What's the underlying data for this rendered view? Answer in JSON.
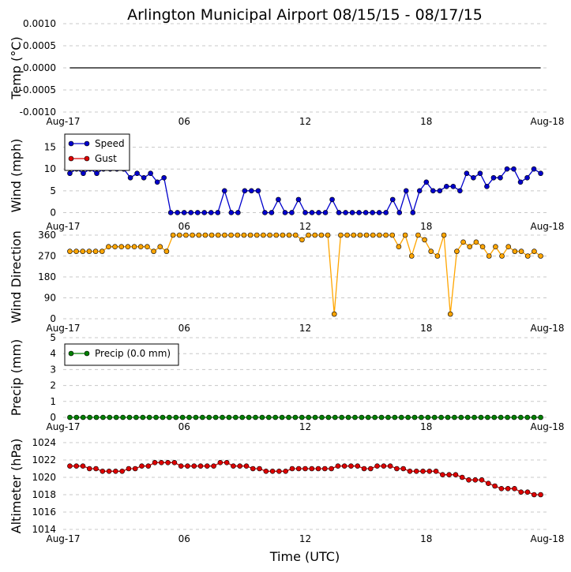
{
  "chart_data": {
    "title": "Arlington Municipal Airport 08/15/15 - 08/17/15",
    "xlabel": "Time (UTC)",
    "x_ticks": [
      "Aug-17",
      "06",
      "12",
      "18",
      "Aug-18"
    ],
    "x_tick_hours": [
      0,
      6,
      12,
      18,
      24
    ],
    "x_range_hours": [
      0,
      24
    ],
    "grid": "horizontal dashed",
    "panels": [
      {
        "id": "temp",
        "type": "line",
        "ylabel": "Temp (°C)",
        "ylim": [
          -0.001,
          0.001
        ],
        "yticks": [
          "0.0010",
          "0.0005",
          "0.0000",
          "-0.0005",
          "-0.0010"
        ],
        "ytick_values": [
          0.001,
          0.0005,
          0,
          -0.0005,
          -0.001
        ],
        "series": [
          {
            "color": "#000000",
            "markers": false,
            "x": [
              0.33,
              23.67
            ],
            "values": [
              0,
              0
            ]
          }
        ]
      },
      {
        "id": "wind",
        "type": "line",
        "ylabel": "Wind (mph)",
        "ylim": [
          -1,
          18
        ],
        "yticks": [
          "15",
          "10",
          "5",
          "0"
        ],
        "ytick_values": [
          15,
          10,
          5,
          0
        ],
        "legend_position": "top-left",
        "series": [
          {
            "name": "Speed",
            "color": "#0000cc",
            "markers": true,
            "values": [
              9,
              10,
              9,
              10,
              9,
              10,
              10,
              10,
              10,
              8,
              9,
              8,
              9,
              7,
              8,
              0,
              0,
              0,
              0,
              0,
              0,
              0,
              0,
              5,
              0,
              0,
              5,
              5,
              5,
              0,
              0,
              3,
              0,
              0,
              3,
              0,
              0,
              0,
              0,
              3,
              0,
              0,
              0,
              0,
              0,
              0,
              0,
              0,
              3,
              0,
              5,
              0,
              5,
              7,
              5,
              5,
              6,
              6,
              5,
              9,
              8,
              9,
              6,
              8,
              8,
              10,
              10,
              7,
              8,
              10,
              9
            ]
          },
          {
            "name": "Gust",
            "color": "#dd0000",
            "markers": true,
            "values": []
          }
        ]
      },
      {
        "id": "direction",
        "type": "line",
        "ylabel": "Wind Direction",
        "ylim": [
          0,
          360
        ],
        "yticks": [
          "360",
          "270",
          "180",
          "90",
          "0"
        ],
        "ytick_values": [
          360,
          270,
          180,
          90,
          0
        ],
        "series": [
          {
            "color": "#ffa500",
            "markers": true,
            "values": [
              290,
              290,
              290,
              290,
              290,
              290,
              310,
              310,
              310,
              310,
              310,
              310,
              310,
              290,
              310,
              290,
              360,
              360,
              360,
              360,
              360,
              360,
              360,
              360,
              360,
              360,
              360,
              360,
              360,
              360,
              360,
              360,
              360,
              360,
              360,
              360,
              340,
              360,
              360,
              360,
              360,
              20,
              360,
              360,
              360,
              360,
              360,
              360,
              360,
              360,
              360,
              310,
              360,
              270,
              360,
              340,
              290,
              270,
              360,
              20,
              290,
              330,
              310,
              330,
              310,
              270,
              310,
              270,
              310,
              290,
              290,
              270,
              290,
              270
            ]
          }
        ]
      },
      {
        "id": "precip",
        "type": "line",
        "ylabel": "Precip (mm)",
        "ylim": [
          0,
          5
        ],
        "yticks": [
          "5",
          "4",
          "3",
          "2",
          "1",
          "0"
        ],
        "ytick_values": [
          5,
          4,
          3,
          2,
          1,
          0
        ],
        "legend_position": "top-left",
        "series": [
          {
            "name": "Precip (0.0 mm)",
            "color": "#008000",
            "markers": true,
            "constant_value": 0,
            "count": 72
          }
        ]
      },
      {
        "id": "altimeter",
        "type": "line",
        "ylabel": "Altimeter (hPa)",
        "ylim": [
          1014,
          1024
        ],
        "yticks": [
          "1024",
          "1022",
          "1020",
          "1018",
          "1016",
          "1014"
        ],
        "ytick_values": [
          1024,
          1022,
          1020,
          1018,
          1016,
          1014
        ],
        "series": [
          {
            "color": "#dd0000",
            "markers": true,
            "values": [
              1021.3,
              1021.3,
              1021.3,
              1021.0,
              1021.0,
              1020.7,
              1020.7,
              1020.7,
              1020.7,
              1021.0,
              1021.0,
              1021.3,
              1021.3,
              1021.7,
              1021.7,
              1021.7,
              1021.7,
              1021.3,
              1021.3,
              1021.3,
              1021.3,
              1021.3,
              1021.3,
              1021.7,
              1021.7,
              1021.3,
              1021.3,
              1021.3,
              1021.0,
              1021.0,
              1020.7,
              1020.7,
              1020.7,
              1020.7,
              1021.0,
              1021.0,
              1021.0,
              1021.0,
              1021.0,
              1021.0,
              1021.0,
              1021.3,
              1021.3,
              1021.3,
              1021.3,
              1021.0,
              1021.0,
              1021.3,
              1021.3,
              1021.3,
              1021.0,
              1021.0,
              1020.7,
              1020.7,
              1020.7,
              1020.7,
              1020.7,
              1020.3,
              1020.3,
              1020.3,
              1020.0,
              1019.7,
              1019.7,
              1019.7,
              1019.3,
              1019.0,
              1018.7,
              1018.7,
              1018.7,
              1018.3,
              1018.3,
              1018.0,
              1018.0
            ]
          }
        ]
      }
    ]
  }
}
